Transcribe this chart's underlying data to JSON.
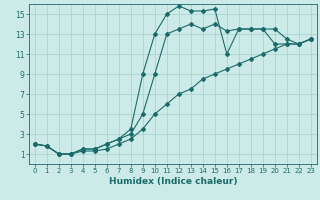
{
  "xlabel": "Humidex (Indice chaleur)",
  "bg_color": "#cceae8",
  "grid_color": "#aad4d0",
  "line_color": "#1a6b6b",
  "xlim": [
    -0.5,
    23.5
  ],
  "ylim": [
    0,
    16
  ],
  "xticks": [
    0,
    1,
    2,
    3,
    4,
    5,
    6,
    7,
    8,
    9,
    10,
    11,
    12,
    13,
    14,
    15,
    16,
    17,
    18,
    19,
    20,
    21,
    22,
    23
  ],
  "yticks": [
    1,
    3,
    5,
    7,
    9,
    11,
    13,
    15
  ],
  "line_peaked_x": [
    0,
    1,
    2,
    3,
    4,
    5,
    6,
    7,
    8,
    9,
    10,
    11,
    12,
    13,
    14,
    15,
    16,
    17,
    18,
    19,
    20,
    21,
    22,
    23
  ],
  "line_peaked_y": [
    2.0,
    1.8,
    1.0,
    1.0,
    1.5,
    1.5,
    2.0,
    2.5,
    3.5,
    9.0,
    13.0,
    15.0,
    15.8,
    15.3,
    15.3,
    15.5,
    11.0,
    13.5,
    13.5,
    13.5,
    12.0,
    12.0,
    12.0,
    12.5
  ],
  "line_upper_x": [
    0,
    1,
    2,
    3,
    4,
    5,
    6,
    7,
    8,
    9,
    10,
    11,
    12,
    13,
    14,
    15,
    16,
    17,
    18,
    19,
    20,
    21,
    22,
    23
  ],
  "line_upper_y": [
    2.0,
    1.8,
    1.0,
    1.0,
    1.5,
    1.5,
    2.0,
    2.5,
    3.0,
    5.0,
    9.0,
    13.0,
    13.5,
    14.0,
    13.5,
    14.0,
    13.3,
    13.5,
    13.5,
    13.5,
    13.5,
    12.5,
    12.0,
    12.5
  ],
  "line_lower_x": [
    0,
    1,
    2,
    3,
    4,
    5,
    6,
    7,
    8,
    9,
    10,
    11,
    12,
    13,
    14,
    15,
    16,
    17,
    18,
    19,
    20,
    21,
    22,
    23
  ],
  "line_lower_y": [
    2.0,
    1.8,
    1.0,
    1.0,
    1.3,
    1.3,
    1.5,
    2.0,
    2.5,
    3.5,
    5.0,
    6.0,
    7.0,
    7.5,
    8.5,
    9.0,
    9.5,
    10.0,
    10.5,
    11.0,
    11.5,
    12.0,
    12.0,
    12.5
  ]
}
